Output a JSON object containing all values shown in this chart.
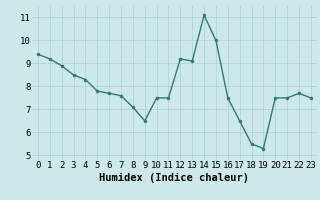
{
  "x": [
    0,
    1,
    2,
    3,
    4,
    5,
    6,
    7,
    8,
    9,
    10,
    11,
    12,
    13,
    14,
    15,
    16,
    17,
    18,
    19,
    20,
    21,
    22,
    23
  ],
  "y": [
    9.4,
    9.2,
    8.9,
    8.5,
    8.3,
    7.8,
    7.7,
    7.6,
    7.1,
    6.5,
    7.5,
    7.5,
    9.2,
    9.1,
    11.1,
    10.0,
    7.5,
    6.5,
    5.5,
    5.3,
    7.5,
    7.5,
    7.7,
    7.5
  ],
  "line_color": "#2e7d6e",
  "marker": "o",
  "marker_size": 2.0,
  "linewidth": 1.0,
  "xlabel": "Humidex (Indice chaleur)",
  "xlim": [
    -0.5,
    23.5
  ],
  "ylim": [
    4.8,
    11.5
  ],
  "yticks": [
    5,
    6,
    7,
    8,
    9,
    10,
    11
  ],
  "xticks": [
    0,
    1,
    2,
    3,
    4,
    5,
    6,
    7,
    8,
    9,
    10,
    11,
    12,
    13,
    14,
    15,
    16,
    17,
    18,
    19,
    20,
    21,
    22,
    23
  ],
  "background_color": "#cce8e8",
  "grid_color": "#aad0d0",
  "xlabel_fontsize": 7.5,
  "tick_fontsize": 6.5
}
